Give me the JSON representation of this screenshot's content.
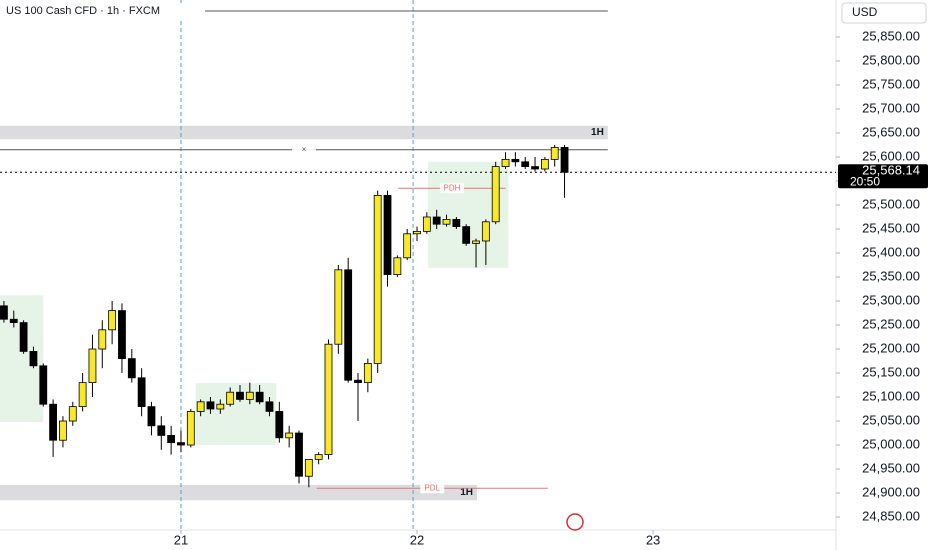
{
  "chart_data": {
    "type": "candlestick",
    "title": "US 100 Cash CFD · 1h · FXCM",
    "currency": "USD",
    "x": [
      -18,
      -17,
      -16,
      -15,
      -14,
      -13,
      -12,
      -11,
      -10,
      -9,
      -8,
      -7,
      -6,
      -5,
      -4,
      -3,
      -2,
      -1,
      0,
      1,
      2,
      3,
      4,
      5,
      6,
      7,
      8,
      9,
      10,
      11,
      12,
      13,
      14,
      15,
      16,
      17,
      18,
      19,
      20,
      21,
      22,
      23,
      24,
      25,
      26,
      27,
      28,
      29,
      30,
      31,
      32,
      33,
      34,
      35,
      36,
      37,
      38,
      39
    ],
    "open": [
      25290,
      25262,
      25255,
      25195,
      25165,
      25085,
      25010,
      25050,
      25080,
      25130,
      25200,
      25240,
      25280,
      25180,
      25140,
      25080,
      25040,
      25020,
      25005,
      25000,
      25070,
      25090,
      25075,
      25085,
      25110,
      25095,
      25110,
      25090,
      25070,
      25015,
      25025,
      24935,
      24970,
      24980,
      25210,
      25365,
      25135,
      25130,
      25170,
      25520,
      25355,
      25390,
      25440,
      25445,
      25475,
      25460,
      25470,
      25455,
      25420,
      25425,
      25465,
      25580,
      25595,
      25590,
      25580,
      25575,
      25595,
      25620
    ],
    "high": [
      25300,
      25280,
      25260,
      25205,
      25170,
      25095,
      25060,
      25090,
      25150,
      25230,
      25260,
      25300,
      25295,
      25200,
      25160,
      25090,
      25060,
      25040,
      25030,
      25075,
      25095,
      25100,
      25095,
      25120,
      25125,
      25130,
      25125,
      25100,
      25090,
      25040,
      25030,
      24970,
      24985,
      25220,
      25375,
      25390,
      25150,
      25180,
      25530,
      25530,
      25395,
      25450,
      25455,
      25485,
      25490,
      25480,
      25475,
      25460,
      25430,
      25470,
      25590,
      25610,
      25610,
      25600,
      25600,
      25600,
      25625,
      25625
    ],
    "low": [
      25255,
      25245,
      25190,
      25160,
      25080,
      24975,
      24995,
      25040,
      25070,
      25100,
      25160,
      25210,
      25150,
      25130,
      25060,
      25020,
      24990,
      24980,
      24985,
      24995,
      25060,
      25065,
      25065,
      25080,
      25090,
      25085,
      25085,
      25060,
      25005,
      24995,
      24920,
      24912,
      24960,
      24970,
      25190,
      25130,
      25050,
      25110,
      25150,
      25330,
      25350,
      25385,
      25425,
      25440,
      25450,
      25455,
      25450,
      25415,
      25370,
      25375,
      25460,
      25575,
      25580,
      25575,
      25570,
      25570,
      25580,
      25515
    ],
    "close": [
      25262,
      25255,
      25195,
      25165,
      25085,
      25010,
      25050,
      25080,
      25130,
      25200,
      25240,
      25280,
      25180,
      25140,
      25080,
      25040,
      25020,
      25005,
      25000,
      25070,
      25090,
      25075,
      25085,
      25110,
      25095,
      25110,
      25090,
      25070,
      25015,
      25025,
      24935,
      24970,
      24980,
      25210,
      25365,
      25135,
      25130,
      25170,
      25520,
      25355,
      25390,
      25440,
      25445,
      25475,
      25460,
      25470,
      25455,
      25420,
      25425,
      25465,
      25580,
      25595,
      25590,
      25580,
      25575,
      25595,
      25620,
      25568.14
    ],
    "up_color": "#f7e82a",
    "down_color": "#000000",
    "xlim": [
      -18.4,
      66.6
    ],
    "xticks": [
      {
        "value": 0,
        "label": "21"
      },
      {
        "value": 24,
        "label": "22"
      },
      {
        "value": 48,
        "label": "23"
      }
    ],
    "ylim": [
      24823,
      25927
    ],
    "yticks": [
      {
        "value": 24850,
        "label": "24,850.00"
      },
      {
        "value": 24900,
        "label": "24,900.00"
      },
      {
        "value": 24950,
        "label": "24,950.00"
      },
      {
        "value": 25000,
        "label": "25,000.00"
      },
      {
        "value": 25050,
        "label": "25,050.00"
      },
      {
        "value": 25100,
        "label": "25,100.00"
      },
      {
        "value": 25150,
        "label": "25,150.00"
      },
      {
        "value": 25200,
        "label": "25,200.00"
      },
      {
        "value": 25250,
        "label": "25,250.00"
      },
      {
        "value": 25300,
        "label": "25,300.00"
      },
      {
        "value": 25350,
        "label": "25,350.00"
      },
      {
        "value": 25400,
        "label": "25,400.00"
      },
      {
        "value": 25450,
        "label": "25,450.00"
      },
      {
        "value": 25500,
        "label": "25,500.00"
      },
      {
        "value": 25550,
        "label": "25,550.00"
      },
      {
        "value": 25600,
        "label": "25,600.00"
      },
      {
        "value": 25650,
        "label": "25,650.00"
      },
      {
        "value": 25700,
        "label": "25,700.00"
      },
      {
        "value": 25750,
        "label": "25,750.00"
      },
      {
        "value": 25800,
        "label": "25,800.00"
      },
      {
        "value": 25850,
        "label": "25,850.00"
      }
    ],
    "last_price": {
      "value": 25568.14,
      "label": "25,568.14"
    },
    "countdown": "20:50",
    "session_lines": [
      0,
      23.6
    ],
    "zones": [
      {
        "xlim": [
          -18.4,
          43.4
        ],
        "ylim": [
          25637,
          25665
        ],
        "color": "#dcdcdf",
        "label": "1H"
      },
      {
        "xlim": [
          -18.4,
          30.1
        ],
        "ylim": [
          24885,
          24917
        ],
        "color": "#dcdcdf",
        "label": "1H"
      }
    ],
    "boxes": [
      {
        "xlim": [
          -18.4,
          -14.0
        ],
        "ylim": [
          25048,
          25312
        ],
        "color": "#e6f4e7"
      },
      {
        "xlim": [
          1.5,
          9.7
        ],
        "ylim": [
          25000,
          25129
        ],
        "color": "#e6f4e7"
      },
      {
        "xlim": [
          25.1,
          33.3
        ],
        "ylim": [
          25369,
          25590
        ],
        "color": "#e6f4e7"
      }
    ],
    "levels": [
      {
        "value": 25904,
        "xlim": [
          -18.4,
          43.4
        ],
        "color": "#555555"
      },
      {
        "value": 25615,
        "xlim": [
          -18.4,
          43.4
        ],
        "color": "#555555",
        "label": "×"
      },
      {
        "value": 25535,
        "xlim": [
          22.1,
          33.0
        ],
        "color": "#e57373",
        "label": "PDH"
      },
      {
        "value": 24910,
        "xlim": [
          13.8,
          37.3
        ],
        "color": "#e57373",
        "label": "PDL"
      }
    ]
  }
}
